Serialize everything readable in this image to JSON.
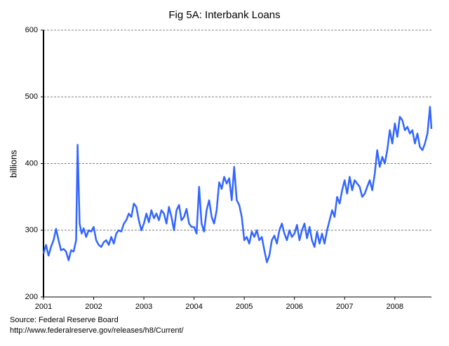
{
  "chart_data": {
    "type": "line",
    "title": "Fig 5A: Interbank Loans",
    "y_label": "billions",
    "source": "Source: Federal Reserve Board",
    "url": "http://www.federalreserve.gov/releases/h8/Current/",
    "color": "#3366ff",
    "grid": true,
    "xlim": [
      2001,
      2008.73
    ],
    "xticks": [
      2001,
      2002,
      2003,
      2004,
      2005,
      2006,
      2007,
      2008
    ],
    "ylim": [
      200,
      600
    ],
    "yticks": [
      200,
      300,
      400,
      500,
      600
    ],
    "x": [
      2001.0,
      2001.05,
      2001.1,
      2001.15,
      2001.2,
      2001.25,
      2001.3,
      2001.35,
      2001.4,
      2001.45,
      2001.5,
      2001.55,
      2001.6,
      2001.65,
      2001.68,
      2001.72,
      2001.76,
      2001.8,
      2001.85,
      2001.9,
      2001.95,
      2002.0,
      2002.05,
      2002.1,
      2002.15,
      2002.2,
      2002.25,
      2002.3,
      2002.35,
      2002.4,
      2002.45,
      2002.5,
      2002.55,
      2002.6,
      2002.65,
      2002.7,
      2002.75,
      2002.8,
      2002.85,
      2002.9,
      2002.95,
      2003.0,
      2003.05,
      2003.1,
      2003.15,
      2003.2,
      2003.25,
      2003.3,
      2003.35,
      2003.4,
      2003.45,
      2003.5,
      2003.55,
      2003.6,
      2003.65,
      2003.7,
      2003.75,
      2003.8,
      2003.85,
      2003.9,
      2003.95,
      2004.0,
      2004.05,
      2004.1,
      2004.15,
      2004.2,
      2004.25,
      2004.3,
      2004.35,
      2004.4,
      2004.45,
      2004.5,
      2004.55,
      2004.6,
      2004.65,
      2004.7,
      2004.75,
      2004.8,
      2004.85,
      2004.9,
      2004.95,
      2005.0,
      2005.05,
      2005.1,
      2005.15,
      2005.2,
      2005.25,
      2005.3,
      2005.35,
      2005.4,
      2005.45,
      2005.5,
      2005.55,
      2005.6,
      2005.65,
      2005.7,
      2005.75,
      2005.8,
      2005.85,
      2005.9,
      2005.95,
      2006.0,
      2006.05,
      2006.1,
      2006.15,
      2006.2,
      2006.25,
      2006.3,
      2006.35,
      2006.4,
      2006.45,
      2006.5,
      2006.55,
      2006.6,
      2006.65,
      2006.7,
      2006.75,
      2006.8,
      2006.85,
      2006.9,
      2006.95,
      2007.0,
      2007.05,
      2007.1,
      2007.15,
      2007.2,
      2007.25,
      2007.3,
      2007.35,
      2007.4,
      2007.45,
      2007.5,
      2007.55,
      2007.6,
      2007.65,
      2007.7,
      2007.75,
      2007.8,
      2007.85,
      2007.9,
      2007.95,
      2008.0,
      2008.05,
      2008.1,
      2008.15,
      2008.2,
      2008.25,
      2008.3,
      2008.35,
      2008.4,
      2008.45,
      2008.5,
      2008.55,
      2008.6,
      2008.65,
      2008.7,
      2008.73
    ],
    "values": [
      265,
      278,
      262,
      275,
      285,
      302,
      285,
      270,
      272,
      268,
      255,
      270,
      268,
      285,
      428,
      310,
      295,
      303,
      290,
      300,
      298,
      305,
      285,
      278,
      275,
      282,
      285,
      278,
      290,
      280,
      295,
      300,
      298,
      310,
      315,
      325,
      320,
      340,
      335,
      315,
      300,
      310,
      325,
      312,
      330,
      318,
      325,
      315,
      330,
      325,
      310,
      335,
      320,
      300,
      330,
      338,
      315,
      320,
      332,
      310,
      305,
      305,
      295,
      365,
      310,
      298,
      330,
      345,
      320,
      310,
      330,
      372,
      362,
      380,
      370,
      378,
      345,
      395,
      345,
      338,
      320,
      285,
      290,
      280,
      298,
      290,
      300,
      285,
      290,
      270,
      252,
      262,
      285,
      292,
      280,
      300,
      310,
      295,
      285,
      300,
      290,
      295,
      308,
      285,
      300,
      310,
      288,
      305,
      285,
      275,
      298,
      280,
      295,
      280,
      300,
      315,
      330,
      320,
      350,
      340,
      360,
      375,
      355,
      380,
      360,
      375,
      370,
      365,
      350,
      355,
      365,
      375,
      360,
      385,
      420,
      395,
      410,
      400,
      420,
      450,
      430,
      460,
      440,
      470,
      465,
      450,
      455,
      445,
      450,
      430,
      445,
      425,
      420,
      430,
      445,
      485,
      452
    ]
  }
}
